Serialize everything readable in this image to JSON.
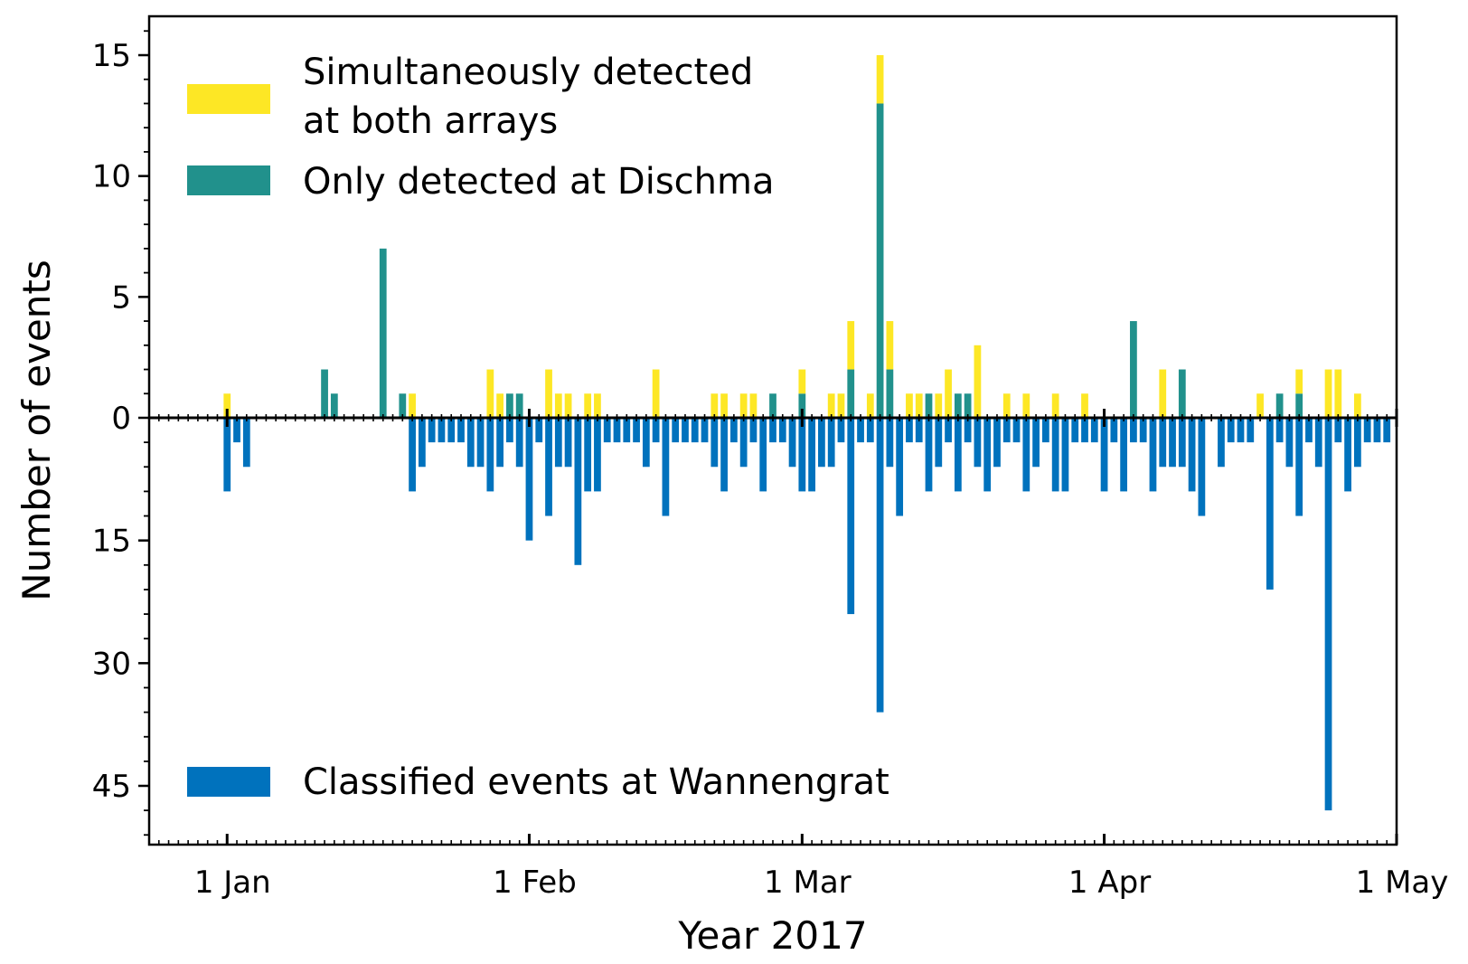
{
  "chart_data": {
    "type": "bar",
    "title": "",
    "xlabel": "Year 2017",
    "ylabel": "Number of events",
    "x_range": [
      "2016-12-24",
      "2017-05-01"
    ],
    "x_ticks": [
      {
        "date": "2017-01-01",
        "label": "1 Jan"
      },
      {
        "date": "2017-02-01",
        "label": "1 Feb"
      },
      {
        "date": "2017-03-01",
        "label": "1 Mar"
      },
      {
        "date": "2017-04-01",
        "label": "1 Apr"
      },
      {
        "date": "2017-05-01",
        "label": "1 May"
      }
    ],
    "upper_axis": {
      "ylim": [
        0,
        16.5
      ],
      "ticks": [
        0,
        5,
        10,
        15
      ],
      "minor_step": 1
    },
    "lower_axis": {
      "ylim": [
        0,
        53
      ],
      "ticks": [
        15,
        30,
        45
      ],
      "minor_step": 3,
      "direction": "downward"
    },
    "grid": false,
    "legend_top": "top-left",
    "legend_bottom": "bottom-left",
    "series": [
      {
        "name": "Simultaneously detected at both arrays",
        "color": "#fde725",
        "stacked_on": "Only detected at Dischma",
        "points": [
          [
            "2017-01-01",
            1
          ],
          [
            "2017-01-20",
            1
          ],
          [
            "2017-01-28",
            2
          ],
          [
            "2017-01-29",
            1
          ],
          [
            "2017-02-03",
            2
          ],
          [
            "2017-02-04",
            1
          ],
          [
            "2017-02-05",
            1
          ],
          [
            "2017-02-07",
            1
          ],
          [
            "2017-02-08",
            1
          ],
          [
            "2017-02-14",
            2
          ],
          [
            "2017-02-20",
            1
          ],
          [
            "2017-02-21",
            1
          ],
          [
            "2017-02-23",
            1
          ],
          [
            "2017-02-24",
            1
          ],
          [
            "2017-03-01",
            1
          ],
          [
            "2017-03-04",
            1
          ],
          [
            "2017-03-05",
            1
          ],
          [
            "2017-03-06",
            2
          ],
          [
            "2017-03-08",
            1
          ],
          [
            "2017-03-09",
            2
          ],
          [
            "2017-03-10",
            2
          ],
          [
            "2017-03-12",
            1
          ],
          [
            "2017-03-13",
            1
          ],
          [
            "2017-03-15",
            1
          ],
          [
            "2017-03-16",
            2
          ],
          [
            "2017-03-19",
            3
          ],
          [
            "2017-03-22",
            1
          ],
          [
            "2017-03-24",
            1
          ],
          [
            "2017-03-27",
            1
          ],
          [
            "2017-03-30",
            1
          ],
          [
            "2017-04-07",
            2
          ],
          [
            "2017-04-17",
            1
          ],
          [
            "2017-04-21",
            1
          ],
          [
            "2017-04-24",
            2
          ],
          [
            "2017-04-25",
            2
          ],
          [
            "2017-04-27",
            1
          ]
        ]
      },
      {
        "name": "Only detected at Dischma",
        "color": "#21918c",
        "points": [
          [
            "2017-01-11",
            2
          ],
          [
            "2017-01-12",
            1
          ],
          [
            "2017-01-17",
            7
          ],
          [
            "2017-01-19",
            1
          ],
          [
            "2017-01-30",
            1
          ],
          [
            "2017-01-31",
            1
          ],
          [
            "2017-02-26",
            1
          ],
          [
            "2017-03-01",
            1
          ],
          [
            "2017-03-06",
            2
          ],
          [
            "2017-03-09",
            13
          ],
          [
            "2017-03-10",
            2
          ],
          [
            "2017-03-14",
            1
          ],
          [
            "2017-03-17",
            1
          ],
          [
            "2017-03-18",
            1
          ],
          [
            "2017-04-04",
            4
          ],
          [
            "2017-04-09",
            2
          ],
          [
            "2017-04-19",
            1
          ],
          [
            "2017-04-21",
            1
          ]
        ]
      },
      {
        "name": "Classified events at Wannengrat",
        "color": "#0072bd",
        "direction": "downward",
        "points": [
          [
            "2017-01-01",
            9
          ],
          [
            "2017-01-02",
            3
          ],
          [
            "2017-01-03",
            6
          ],
          [
            "2017-01-20",
            9
          ],
          [
            "2017-01-21",
            6
          ],
          [
            "2017-01-22",
            3
          ],
          [
            "2017-01-23",
            3
          ],
          [
            "2017-01-24",
            3
          ],
          [
            "2017-01-25",
            3
          ],
          [
            "2017-01-26",
            6
          ],
          [
            "2017-01-27",
            6
          ],
          [
            "2017-01-28",
            9
          ],
          [
            "2017-01-29",
            6
          ],
          [
            "2017-01-30",
            3
          ],
          [
            "2017-01-31",
            6
          ],
          [
            "2017-02-01",
            15
          ],
          [
            "2017-02-02",
            3
          ],
          [
            "2017-02-03",
            12
          ],
          [
            "2017-02-04",
            6
          ],
          [
            "2017-02-05",
            6
          ],
          [
            "2017-02-06",
            18
          ],
          [
            "2017-02-07",
            9
          ],
          [
            "2017-02-08",
            9
          ],
          [
            "2017-02-09",
            3
          ],
          [
            "2017-02-10",
            3
          ],
          [
            "2017-02-11",
            3
          ],
          [
            "2017-02-12",
            3
          ],
          [
            "2017-02-13",
            6
          ],
          [
            "2017-02-14",
            3
          ],
          [
            "2017-02-15",
            12
          ],
          [
            "2017-02-16",
            3
          ],
          [
            "2017-02-17",
            3
          ],
          [
            "2017-02-18",
            3
          ],
          [
            "2017-02-19",
            3
          ],
          [
            "2017-02-20",
            6
          ],
          [
            "2017-02-21",
            9
          ],
          [
            "2017-02-22",
            3
          ],
          [
            "2017-02-23",
            6
          ],
          [
            "2017-02-24",
            3
          ],
          [
            "2017-02-25",
            9
          ],
          [
            "2017-02-26",
            3
          ],
          [
            "2017-02-27",
            3
          ],
          [
            "2017-02-28",
            6
          ],
          [
            "2017-03-01",
            9
          ],
          [
            "2017-03-02",
            9
          ],
          [
            "2017-03-03",
            6
          ],
          [
            "2017-03-04",
            6
          ],
          [
            "2017-03-05",
            3
          ],
          [
            "2017-03-06",
            24
          ],
          [
            "2017-03-07",
            3
          ],
          [
            "2017-03-08",
            3
          ],
          [
            "2017-03-09",
            36
          ],
          [
            "2017-03-10",
            6
          ],
          [
            "2017-03-11",
            12
          ],
          [
            "2017-03-12",
            3
          ],
          [
            "2017-03-13",
            3
          ],
          [
            "2017-03-14",
            9
          ],
          [
            "2017-03-15",
            6
          ],
          [
            "2017-03-16",
            3
          ],
          [
            "2017-03-17",
            9
          ],
          [
            "2017-03-18",
            3
          ],
          [
            "2017-03-19",
            6
          ],
          [
            "2017-03-20",
            9
          ],
          [
            "2017-03-21",
            6
          ],
          [
            "2017-03-22",
            3
          ],
          [
            "2017-03-23",
            3
          ],
          [
            "2017-03-24",
            9
          ],
          [
            "2017-03-25",
            6
          ],
          [
            "2017-03-26",
            3
          ],
          [
            "2017-03-27",
            9
          ],
          [
            "2017-03-28",
            9
          ],
          [
            "2017-03-29",
            3
          ],
          [
            "2017-03-30",
            3
          ],
          [
            "2017-03-31",
            3
          ],
          [
            "2017-04-01",
            9
          ],
          [
            "2017-04-02",
            3
          ],
          [
            "2017-04-03",
            9
          ],
          [
            "2017-04-04",
            3
          ],
          [
            "2017-04-05",
            3
          ],
          [
            "2017-04-06",
            9
          ],
          [
            "2017-04-07",
            6
          ],
          [
            "2017-04-08",
            6
          ],
          [
            "2017-04-09",
            6
          ],
          [
            "2017-04-10",
            9
          ],
          [
            "2017-04-11",
            12
          ],
          [
            "2017-04-13",
            6
          ],
          [
            "2017-04-14",
            3
          ],
          [
            "2017-04-15",
            3
          ],
          [
            "2017-04-16",
            3
          ],
          [
            "2017-04-18",
            21
          ],
          [
            "2017-04-19",
            3
          ],
          [
            "2017-04-20",
            6
          ],
          [
            "2017-04-21",
            12
          ],
          [
            "2017-04-22",
            3
          ],
          [
            "2017-04-23",
            6
          ],
          [
            "2017-04-24",
            48
          ],
          [
            "2017-04-25",
            3
          ],
          [
            "2017-04-26",
            9
          ],
          [
            "2017-04-27",
            6
          ],
          [
            "2017-04-28",
            3
          ],
          [
            "2017-04-29",
            3
          ],
          [
            "2017-04-30",
            3
          ]
        ]
      }
    ]
  }
}
